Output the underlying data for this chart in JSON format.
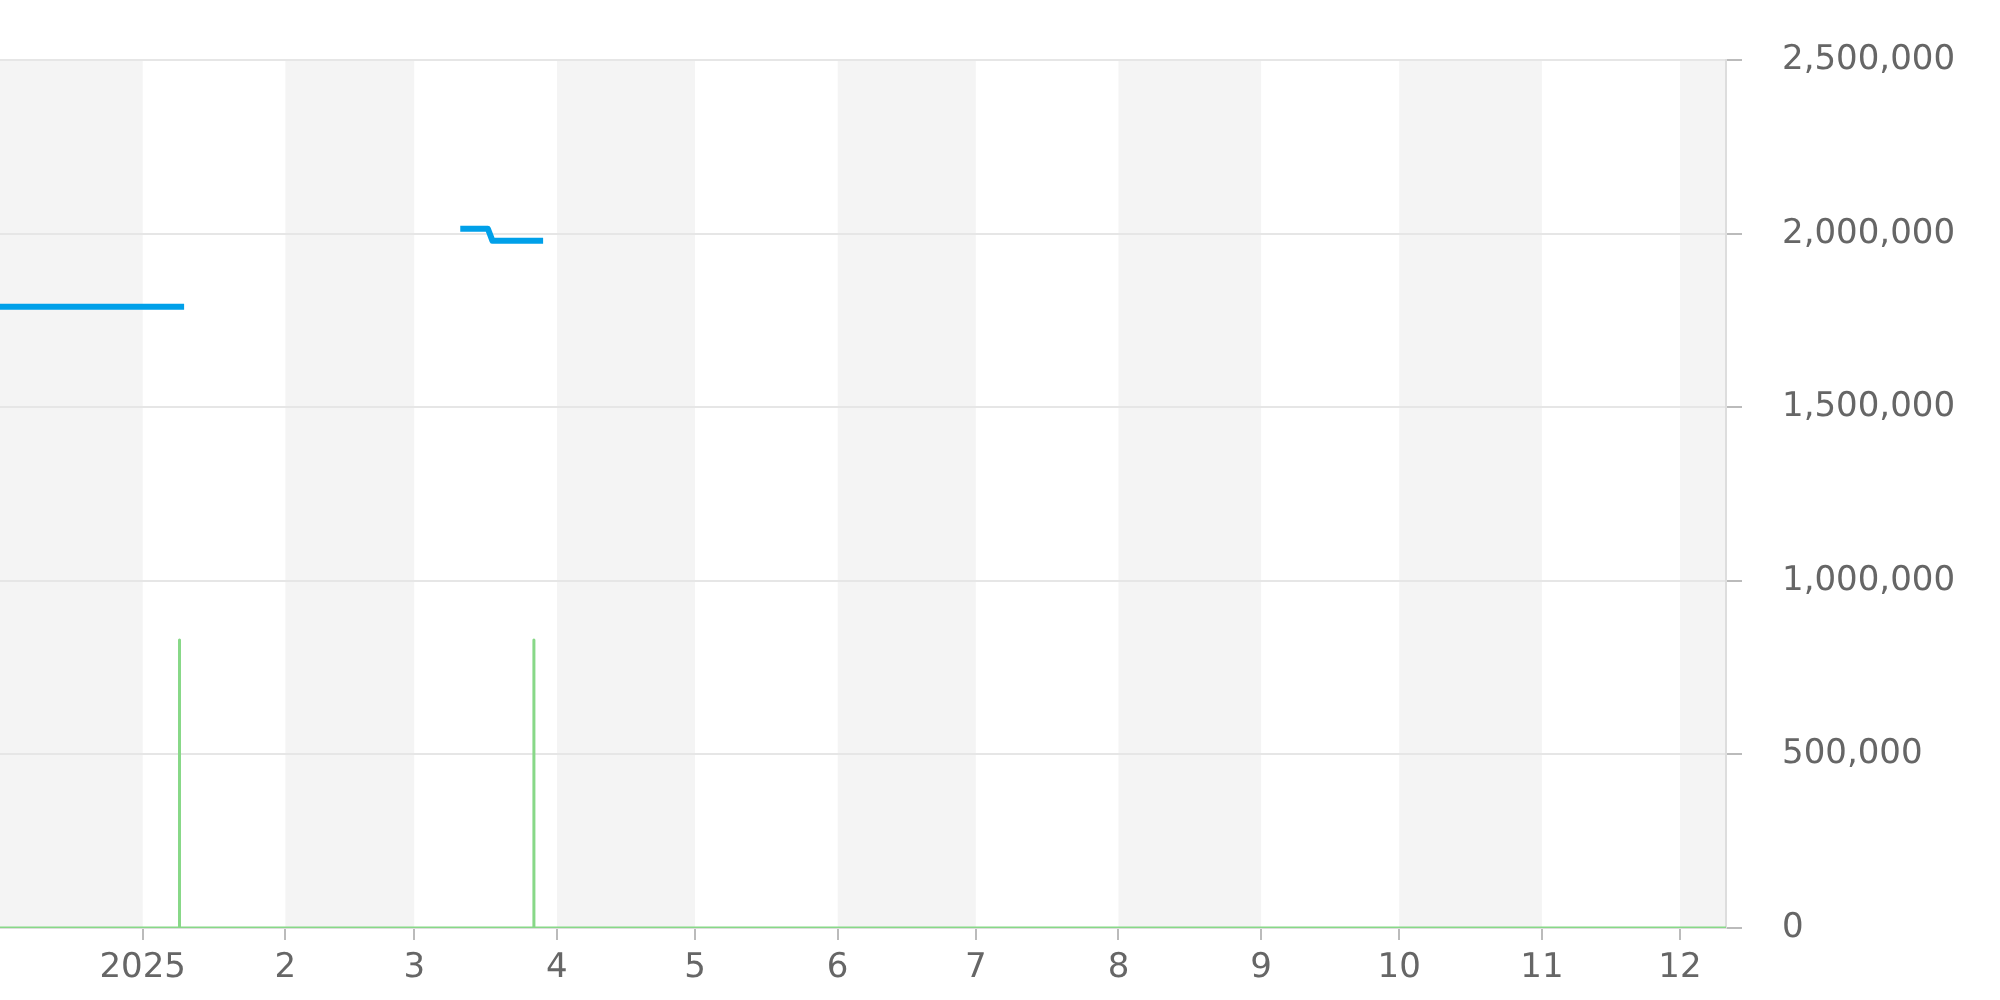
{
  "chart_data": {
    "type": "line",
    "series": [
      {
        "color": "#00a0e9",
        "x": [
          "2024-12-01",
          "2025-01-10",
          "2025-02-10",
          "2025-03-11",
          "2025-03-17",
          "2025-03-18",
          "2025-03-29"
        ],
        "values": [
          1790000,
          1790000,
          null,
          2015000,
          2015000,
          1980000,
          1980000
        ]
      },
      {
        "color": "#88d888",
        "x": [
          "2024-12-01",
          "2025-01-09",
          "2025-01-09",
          "2025-01-09",
          "2025-03-27",
          "2025-03-27",
          "2025-03-27",
          "2025-12-11"
        ],
        "values": [
          0,
          0,
          830000,
          0,
          0,
          830000,
          0,
          0
        ]
      }
    ],
    "xlim": [
      "2024-12-01",
      "2025-12-11"
    ],
    "xticks": [
      {
        "value": "2025-01-01",
        "label": "2025"
      },
      {
        "value": "2025-02-01",
        "label": "2"
      },
      {
        "value": "2025-03-01",
        "label": "3"
      },
      {
        "value": "2025-04-01",
        "label": "4"
      },
      {
        "value": "2025-05-01",
        "label": "5"
      },
      {
        "value": "2025-06-01",
        "label": "6"
      },
      {
        "value": "2025-07-01",
        "label": "7"
      },
      {
        "value": "2025-08-01",
        "label": "8"
      },
      {
        "value": "2025-09-01",
        "label": "9"
      },
      {
        "value": "2025-10-01",
        "label": "10"
      },
      {
        "value": "2025-11-01",
        "label": "11"
      },
      {
        "value": "2025-12-01",
        "label": "12"
      }
    ],
    "ylim": [
      0,
      2500000
    ],
    "yticks": [
      0,
      {
        "value": 500000,
        "label": "500,000"
      },
      {
        "value": 1000000,
        "label": "1,000,000"
      },
      {
        "value": 1500000,
        "label": "1,500,000"
      },
      {
        "value": 2000000,
        "label": "2,000,000"
      },
      {
        "value": 2500000,
        "label": "2,500,000"
      }
    ],
    "bands": [
      {
        "axis": "x",
        "from": "2024-12-01",
        "to": "2025-01-01",
        "color": "#f4f4f4"
      },
      {
        "axis": "x",
        "from": "2025-02-01",
        "to": "2025-03-01",
        "color": "#f4f4f4"
      },
      {
        "axis": "x",
        "from": "2025-04-01",
        "to": "2025-05-01",
        "color": "#f4f4f4"
      },
      {
        "axis": "x",
        "from": "2025-06-01",
        "to": "2025-07-01",
        "color": "#f4f4f4"
      },
      {
        "axis": "x",
        "from": "2025-08-01",
        "to": "2025-09-01",
        "color": "#f4f4f4"
      },
      {
        "axis": "x",
        "from": "2025-10-01",
        "to": "2025-11-01",
        "color": "#f4f4f4"
      },
      {
        "axis": "x",
        "from": "2025-12-01",
        "to": "2025-12-11",
        "color": "#f4f4f4"
      }
    ],
    "grid": "y"
  }
}
